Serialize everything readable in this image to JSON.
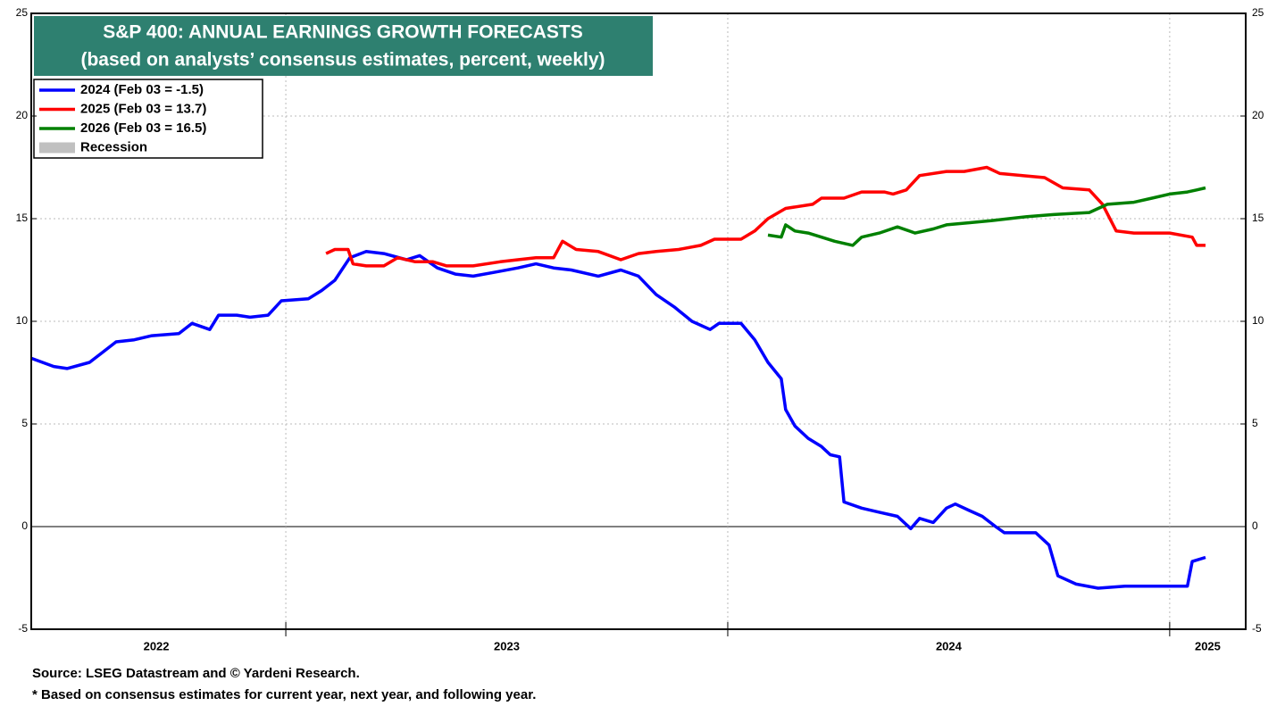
{
  "chart_data": {
    "type": "line",
    "title": "S&P 400: ANNUAL EARNINGS GROWTH FORECASTS",
    "subtitle": "(based on analysts’ consensus estimates, percent, weekly)",
    "source": "Source: LSEG Datastream and © Yardeni Research.",
    "note": "* Based on consensus estimates for current year, next year, and following year.",
    "xlim": [
      2022.424,
      2025.172
    ],
    "xticks": [
      {
        "value": 2022.707,
        "label": "2022"
      },
      {
        "value": 2023.5,
        "label": "2023"
      },
      {
        "value": 2024.5,
        "label": "2024"
      },
      {
        "value": 2025.086,
        "label": "2025"
      }
    ],
    "year_boundaries": [
      2023,
      2024,
      2025
    ],
    "ylim": [
      -5,
      25
    ],
    "yticks": [
      -5,
      0,
      5,
      10,
      15,
      20,
      25
    ],
    "grid": true,
    "legend_position": "upper left",
    "legend_extra": {
      "name": "Recession",
      "color": "#c0c0c0"
    },
    "series": [
      {
        "name": "2024 (Feb 03 = -1.5)",
        "color": "#0000ff",
        "x": [
          2022.424,
          2022.475,
          2022.505,
          2022.556,
          2022.586,
          2022.616,
          2022.657,
          2022.697,
          2022.758,
          2022.788,
          2022.828,
          2022.848,
          2022.889,
          2022.919,
          2022.96,
          2022.99,
          2023.051,
          2023.081,
          2023.111,
          2023.145,
          2023.182,
          2023.222,
          2023.273,
          2023.303,
          2023.343,
          2023.384,
          2023.424,
          2023.475,
          2023.525,
          2023.566,
          2023.606,
          2023.646,
          2023.707,
          2023.758,
          2023.798,
          2023.838,
          2023.879,
          2023.919,
          2023.96,
          2023.98,
          2024.03,
          2024.061,
          2024.091,
          2024.121,
          2024.131,
          2024.152,
          2024.182,
          2024.212,
          2024.232,
          2024.253,
          2024.263,
          2024.303,
          2024.343,
          2024.384,
          2024.414,
          2024.434,
          2024.465,
          2024.495,
          2024.515,
          2024.545,
          2024.576,
          2024.606,
          2024.626,
          2024.697,
          2024.727,
          2024.747,
          2024.788,
          2024.838,
          2024.899,
          2024.97,
          2025.04,
          2025.051,
          2025.081
        ],
        "values": [
          8.2,
          7.8,
          7.7,
          8.0,
          8.5,
          9.0,
          9.1,
          9.3,
          9.4,
          9.9,
          9.6,
          10.3,
          10.3,
          10.2,
          10.3,
          11.0,
          11.1,
          11.5,
          12.0,
          13.1,
          13.4,
          13.3,
          13.0,
          13.2,
          12.6,
          12.3,
          12.2,
          12.4,
          12.6,
          12.8,
          12.6,
          12.5,
          12.2,
          12.5,
          12.2,
          11.3,
          10.7,
          10.0,
          9.6,
          9.9,
          9.9,
          9.1,
          8.0,
          7.2,
          5.7,
          4.9,
          4.3,
          3.9,
          3.5,
          3.4,
          1.2,
          0.9,
          0.7,
          0.5,
          -0.1,
          0.4,
          0.2,
          0.9,
          1.1,
          0.8,
          0.5,
          0.0,
          -0.3,
          -0.3,
          -0.9,
          -2.4,
          -2.8,
          -3.0,
          -2.9,
          -2.9,
          -2.9,
          -1.7,
          -1.5
        ]
      },
      {
        "name": "2025 (Feb 03 = 13.7)",
        "color": "#ff0000",
        "x": [
          2023.091,
          2023.111,
          2023.141,
          2023.152,
          2023.182,
          2023.222,
          2023.253,
          2023.293,
          2023.333,
          2023.364,
          2023.424,
          2023.485,
          2023.525,
          2023.566,
          2023.606,
          2023.626,
          2023.657,
          2023.707,
          2023.758,
          2023.798,
          2023.838,
          2023.889,
          2023.939,
          2023.97,
          2024.03,
          2024.061,
          2024.091,
          2024.131,
          2024.192,
          2024.212,
          2024.263,
          2024.303,
          2024.354,
          2024.374,
          2024.404,
          2024.434,
          2024.495,
          2024.535,
          2024.586,
          2024.616,
          2024.667,
          2024.717,
          2024.758,
          2024.818,
          2024.848,
          2024.879,
          2024.919,
          2024.96,
          2025.0,
          2025.051,
          2025.061,
          2025.081
        ],
        "values": [
          13.3,
          13.5,
          13.5,
          12.8,
          12.7,
          12.7,
          13.1,
          12.9,
          12.9,
          12.7,
          12.7,
          12.9,
          13.0,
          13.1,
          13.1,
          13.9,
          13.5,
          13.4,
          13.0,
          13.3,
          13.4,
          13.5,
          13.7,
          14.0,
          14.0,
          14.4,
          15.0,
          15.5,
          15.7,
          16.0,
          16.0,
          16.3,
          16.3,
          16.2,
          16.4,
          17.1,
          17.3,
          17.3,
          17.5,
          17.2,
          17.1,
          17.0,
          16.5,
          16.4,
          15.7,
          14.4,
          14.3,
          14.3,
          14.3,
          14.1,
          13.7,
          13.7
        ]
      },
      {
        "name": "2026 (Feb 03 = 16.5)",
        "color": "#008000",
        "x": [
          2024.091,
          2024.121,
          2024.131,
          2024.152,
          2024.182,
          2024.212,
          2024.242,
          2024.283,
          2024.303,
          2024.343,
          2024.384,
          2024.424,
          2024.465,
          2024.495,
          2024.545,
          2024.596,
          2024.636,
          2024.677,
          2024.737,
          2024.818,
          2024.859,
          2024.919,
          2024.96,
          2025.0,
          2025.04,
          2025.061,
          2025.081
        ],
        "values": [
          14.2,
          14.1,
          14.7,
          14.4,
          14.3,
          14.1,
          13.9,
          13.7,
          14.1,
          14.3,
          14.6,
          14.3,
          14.5,
          14.7,
          14.8,
          14.9,
          15.0,
          15.1,
          15.2,
          15.3,
          15.7,
          15.8,
          16.0,
          16.2,
          16.3,
          16.4,
          16.5
        ]
      }
    ]
  }
}
